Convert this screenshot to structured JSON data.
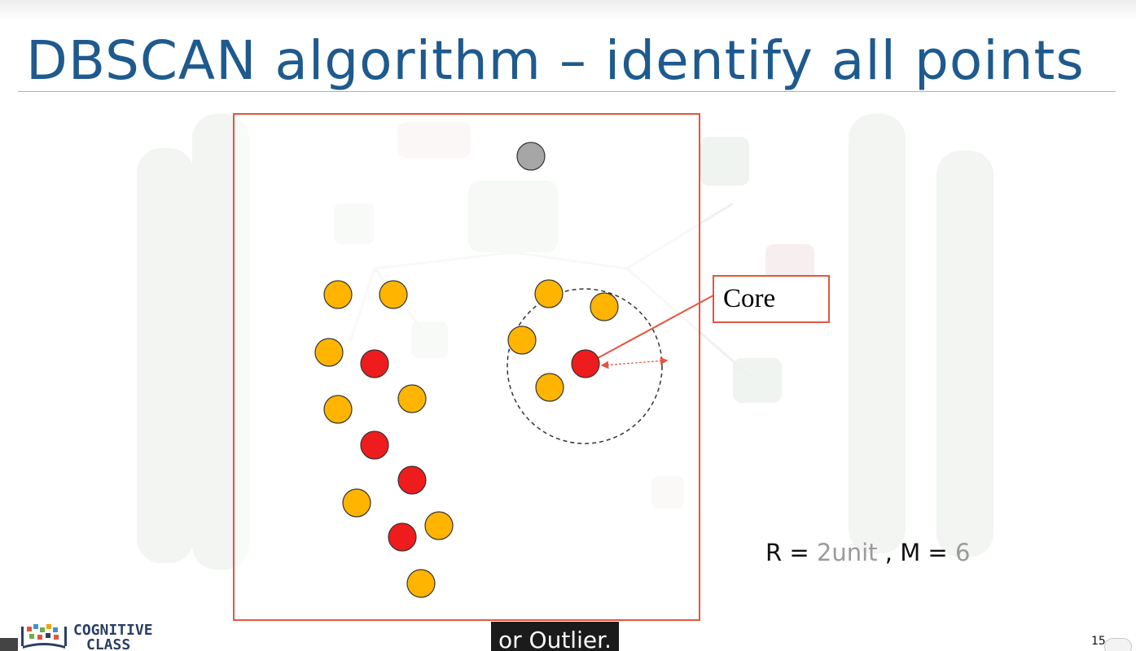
{
  "slide": {
    "title": "DBSCAN algorithm – identify all points",
    "callout_label": "Core",
    "params": {
      "r_label": "R = ",
      "r_value": "2unit",
      "sep": " , ",
      "m_label": "M = ",
      "m_value": "6"
    },
    "slide_number": "15"
  },
  "logo": {
    "line1": "COGNITIVE",
    "line2": "CLASS"
  },
  "caption": {
    "text": "or Outlier."
  },
  "colors": {
    "title": "#1e5a8e",
    "frame": "#e4553f",
    "core_point": "#ee1c1c",
    "border_point": "#ffb400",
    "outlier_point": "#a6a6a6",
    "caption_bg": "#1b1b1b"
  },
  "icons": {
    "logo": "book-logo-icon",
    "arrow": "double-arrow-icon"
  },
  "legend_scheme": [
    "core-point",
    "border-point",
    "outlier-point"
  ]
}
